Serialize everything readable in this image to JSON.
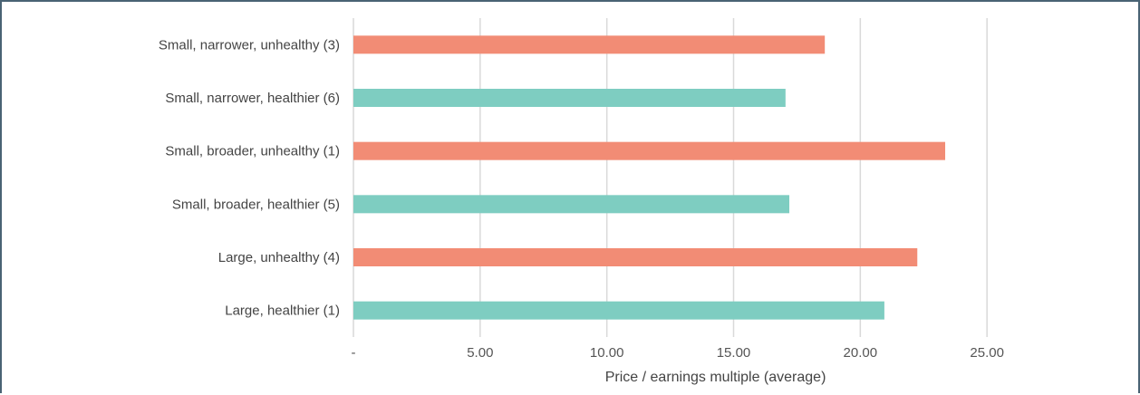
{
  "chart_data": {
    "type": "bar",
    "orientation": "horizontal",
    "categories": [
      "Small, narrower, unhealthy (3)",
      "Small, narrower, healthier (6)",
      "Small, broader, unhealthy (1)",
      "Small, broader, healthier (5)",
      "Large, unhealthy (4)",
      "Large, healthier (1)"
    ],
    "values": [
      18.6,
      17.05,
      23.35,
      17.2,
      22.25,
      20.95
    ],
    "bar_colors": [
      "#f28c75",
      "#7ecdc1",
      "#f28c75",
      "#7ecdc1",
      "#f28c75",
      "#7ecdc1"
    ],
    "xlim": [
      0,
      30
    ],
    "xticks": [
      0,
      5,
      10,
      15,
      20,
      25
    ],
    "xtick_labels": [
      "-",
      "5.00",
      "10.00",
      "15.00",
      "20.00",
      "25.00"
    ],
    "xlabel": "Price / earnings multiple (average)",
    "grid": true
  }
}
